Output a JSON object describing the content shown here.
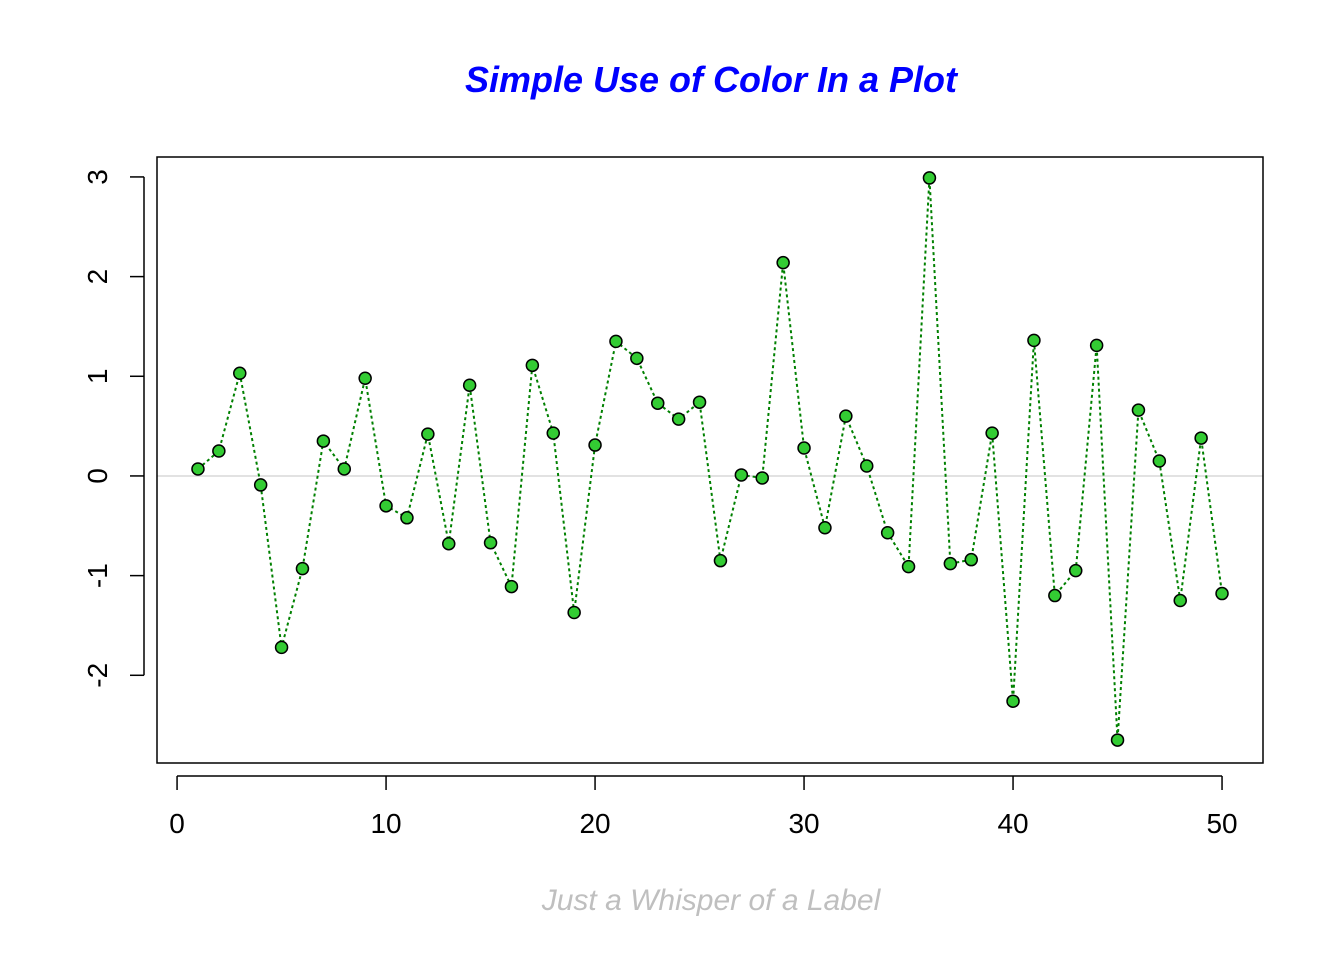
{
  "chart_data": {
    "type": "scatter",
    "title": "Simple Use of Color In a Plot",
    "xlabel": "Just a Whisper of a Label",
    "ylabel": "",
    "x_ticks": [
      0,
      10,
      20,
      30,
      40,
      50
    ],
    "y_ticks": [
      -2,
      -1,
      0,
      1,
      2,
      3
    ],
    "xlim": [
      -0.96,
      51.96
    ],
    "ylim": [
      -2.88,
      3.2
    ],
    "reference_line_y": 0,
    "series": [
      {
        "x": [
          1,
          2,
          3,
          4,
          5,
          6,
          7,
          8,
          9,
          10,
          11,
          12,
          13,
          14,
          15,
          16,
          17,
          18,
          19,
          20,
          21,
          22,
          23,
          24,
          25,
          26,
          27,
          28,
          29,
          30,
          31,
          32,
          33,
          34,
          35,
          36,
          37,
          38,
          39,
          40,
          41,
          42,
          43,
          44,
          45,
          46,
          47,
          48,
          49,
          50
        ],
        "values": [
          0.07,
          0.25,
          1.03,
          -0.09,
          -1.72,
          -0.93,
          0.35,
          0.07,
          0.98,
          -0.3,
          -0.42,
          0.42,
          -0.68,
          0.91,
          -0.67,
          -1.11,
          1.11,
          0.43,
          -1.37,
          0.31,
          1.35,
          1.18,
          0.73,
          0.57,
          0.74,
          -0.85,
          0.01,
          -0.02,
          2.14,
          0.28,
          -0.52,
          0.6,
          0.1,
          -0.57,
          -0.91,
          2.99,
          -0.88,
          -0.84,
          0.43,
          -2.26,
          1.36,
          -1.2,
          -0.95,
          1.31,
          -2.65,
          0.66,
          0.15,
          -1.25,
          0.38,
          -1.18
        ]
      }
    ],
    "colors": {
      "title": "#0000ff",
      "xlabel": "#bfbfbf",
      "line": "#008000",
      "point_fill": "#33cc33",
      "point_stroke": "#000000",
      "reference_line": "#d9d9d9",
      "axis": "#000000"
    }
  }
}
